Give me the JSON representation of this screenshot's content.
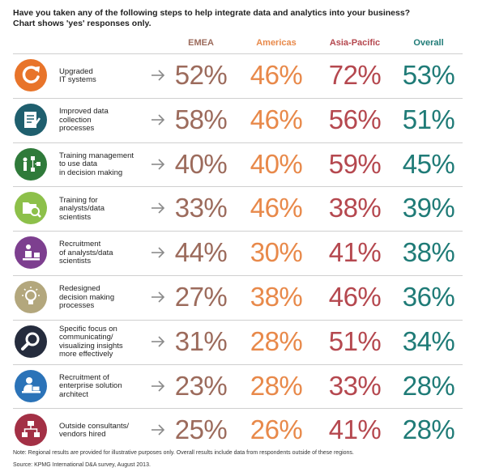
{
  "title_line1": "Have you taken any of the following steps to help integrate data and analytics into your business?",
  "title_line2": "Chart shows 'yes' responses only.",
  "footnote": "Note: Regional results are provided for illustrative purposes only. Overall results include data from respondents outside of these regions.",
  "source": "Source: KPMG International D&A survey, August 2013.",
  "colors": {
    "EMEA": "#9c6b5c",
    "Americas": "#e8894a",
    "Asia-Pacific": "#b5484f",
    "Overall": "#1f7b77",
    "arrow": "#8a8a8a"
  },
  "chart_data": {
    "type": "table",
    "columns": [
      "EMEA",
      "Americas",
      "Asia-Pacific",
      "Overall"
    ],
    "rows": [
      {
        "label": [
          "Upgraded",
          "IT systems"
        ],
        "icon": "refresh-icon",
        "icon_color": "#e8742a",
        "values": [
          "52%",
          "46%",
          "72%",
          "53%"
        ]
      },
      {
        "label": [
          "Improved data",
          "collection",
          "processes"
        ],
        "icon": "document-icon",
        "icon_color": "#1f5f6e",
        "values": [
          "58%",
          "46%",
          "56%",
          "51%"
        ]
      },
      {
        "label": [
          "Training management",
          "to use data",
          "in decision making"
        ],
        "icon": "flowchart-presenter-icon",
        "icon_color": "#2f7a3a",
        "values": [
          "40%",
          "40%",
          "59%",
          "45%"
        ]
      },
      {
        "label": [
          "Training for",
          "analysts/data",
          "scientists"
        ],
        "icon": "folder-search-icon",
        "icon_color": "#8dc04a",
        "values": [
          "33%",
          "46%",
          "38%",
          "39%"
        ]
      },
      {
        "label": [
          "Recruitment",
          "of analysts/data",
          "scientists"
        ],
        "icon": "person-desk-icon",
        "icon_color": "#7d3f8f",
        "values": [
          "44%",
          "30%",
          "41%",
          "38%"
        ]
      },
      {
        "label": [
          "Redesigned",
          "decision making",
          "processes"
        ],
        "icon": "lightbulb-icon",
        "icon_color": "#b3a77d",
        "values": [
          "27%",
          "38%",
          "46%",
          "36%"
        ]
      },
      {
        "label": [
          "Specific focus on",
          "communicating/",
          "visualizing insights",
          "more effectively"
        ],
        "icon": "magnifier-icon",
        "icon_color": "#252c3d",
        "values": [
          "31%",
          "28%",
          "51%",
          "34%"
        ]
      },
      {
        "label": [
          "Recruitment of",
          "enterprise solution",
          "architect"
        ],
        "icon": "person-laptop-icon",
        "icon_color": "#2b73b8",
        "values": [
          "23%",
          "28%",
          "33%",
          "28%"
        ]
      },
      {
        "label": [
          "Outside consultants/",
          "vendors hired"
        ],
        "icon": "org-chart-icon",
        "icon_color": "#a33045",
        "values": [
          "25%",
          "26%",
          "41%",
          "28%"
        ]
      }
    ]
  }
}
